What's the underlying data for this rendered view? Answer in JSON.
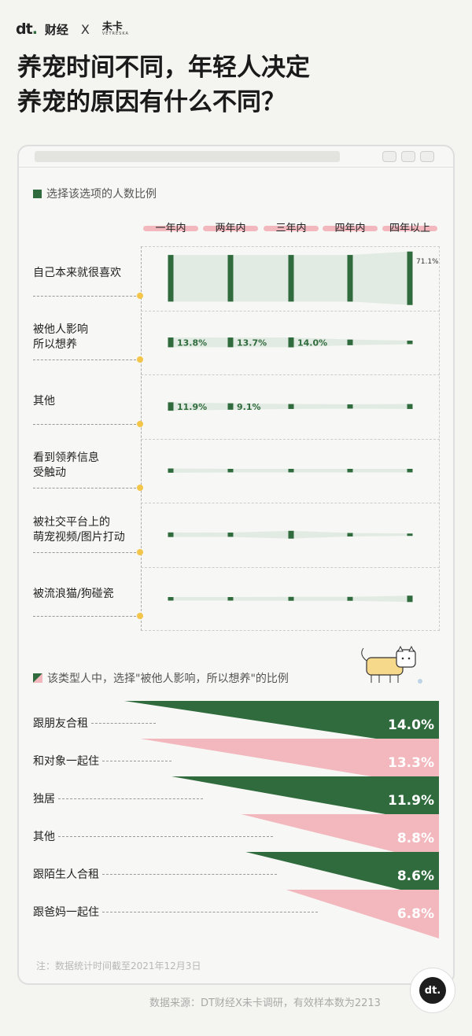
{
  "brand": {
    "logo": "dt",
    "name": "财经",
    "separator": "X",
    "partner_cn": "未卡",
    "partner_en": "VETRESKA"
  },
  "title": {
    "line1": "养宠时间不同，年轻人决定",
    "line2": "养宠的原因有什么不同？"
  },
  "section1": {
    "legend": "选择该选项的人数比例"
  },
  "section2": {
    "legend": "该类型人中，选择\"被他人影响，所以想养\"的比例"
  },
  "note": "注：数据统计时间截至2021年12月3日",
  "source": "数据来源：DT财经X未卡调研，有效样本数为2213",
  "colors": {
    "green": "#2f6b3c",
    "pink": "#f2b8bd",
    "light_green": "#e2ebe3",
    "dot": "#f3c64a"
  },
  "chart_data": [
    {
      "type": "bar",
      "columns": [
        "一年内",
        "两年内",
        "三年内",
        "四年内",
        "四年以上"
      ],
      "rows": [
        {
          "label": "自己本来就很喜欢",
          "values": [
            62,
            62,
            62,
            62,
            71.1
          ],
          "labels": [
            "",
            "",
            "",
            "",
            "71.1%"
          ]
        },
        {
          "label": "被他人影响所以想养",
          "values": [
            13.8,
            13.7,
            14.0,
            8.0,
            5.0
          ],
          "labels": [
            "13.8%",
            "13.7%",
            "14.0%",
            "",
            ""
          ]
        },
        {
          "label": "其他",
          "values": [
            11.9,
            9.1,
            7.0,
            6.0,
            7.0
          ],
          "labels": [
            "11.9%",
            "9.1%",
            "",
            "",
            ""
          ]
        },
        {
          "label": "看到领养信息受触动",
          "values": [
            6.0,
            5.0,
            5.0,
            5.0,
            5.0
          ],
          "labels": [
            "",
            "",
            "",
            "",
            ""
          ]
        },
        {
          "label": "被社交平台上的萌宠视频/图片打动",
          "values": [
            6.5,
            6.0,
            11.0,
            5.0,
            2.5
          ],
          "labels": [
            "",
            "",
            "",
            "",
            ""
          ]
        },
        {
          "label": "被流浪猫/狗碰瓷",
          "values": [
            5.0,
            5.0,
            5.5,
            5.5,
            9.0
          ],
          "labels": [
            "",
            "",
            "",
            "",
            ""
          ]
        }
      ]
    },
    {
      "type": "bar",
      "categories": [
        "跟朋友合租",
        "和对象一起住",
        "独居",
        "其他",
        "跟陌生人合租",
        "跟爸妈一起住"
      ],
      "values": [
        14.0,
        13.3,
        11.9,
        8.8,
        8.6,
        6.8
      ],
      "value_labels": [
        "14.0%",
        "13.3%",
        "11.9%",
        "8.8%",
        "8.6%",
        "6.8%"
      ],
      "colors": [
        "#2f6b3c",
        "#f2b8bd",
        "#2f6b3c",
        "#f2b8bd",
        "#2f6b3c",
        "#f2b8bd"
      ]
    }
  ]
}
